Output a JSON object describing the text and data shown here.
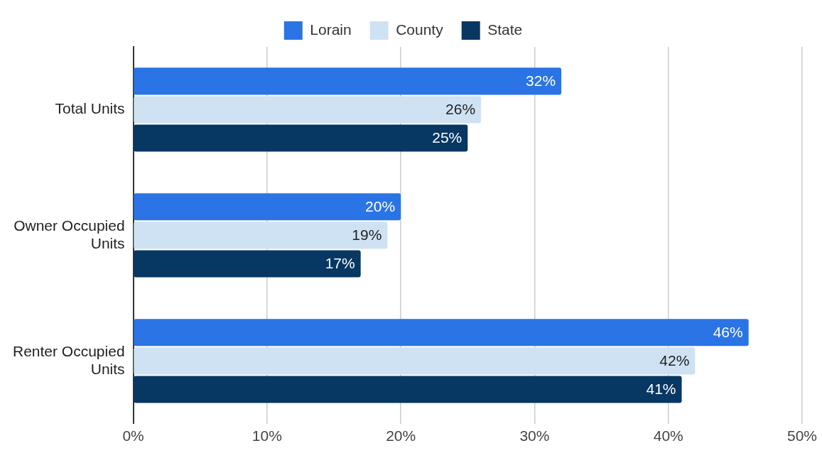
{
  "chart_data": {
    "type": "bar",
    "orientation": "horizontal",
    "categories": [
      "Total Units",
      "Owner Occupied Units",
      "Renter Occupied Units"
    ],
    "series": [
      {
        "name": "Lorain",
        "color": "#2a74e5",
        "values": [
          32,
          20,
          46
        ],
        "value_labels": [
          "32%",
          "20%",
          "46%"
        ]
      },
      {
        "name": "County",
        "color": "#cfe2f3",
        "values": [
          26,
          19,
          42
        ],
        "value_labels": [
          "26%",
          "19%",
          "42%"
        ]
      },
      {
        "name": "State",
        "color": "#073763",
        "values": [
          25,
          17,
          41
        ],
        "value_labels": [
          "25%",
          "17%",
          "41%"
        ]
      }
    ],
    "xlim": [
      0,
      50
    ],
    "xticks": [
      {
        "value": 0,
        "label": "0%"
      },
      {
        "value": 10,
        "label": "10%"
      },
      {
        "value": 20,
        "label": "20%"
      },
      {
        "value": 30,
        "label": "30%"
      },
      {
        "value": 40,
        "label": "40%"
      },
      {
        "value": 50,
        "label": "50%"
      }
    ],
    "grid": "x",
    "legend": "top"
  }
}
